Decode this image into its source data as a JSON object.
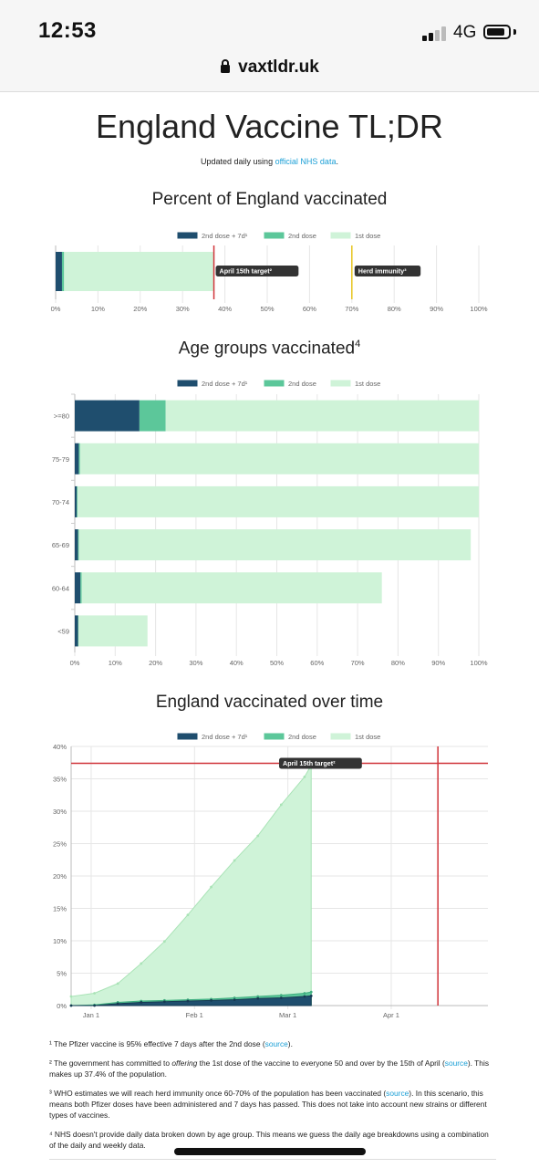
{
  "status_bar": {
    "time": "12:53",
    "network": "4G"
  },
  "browser": {
    "url": "vaxtldr.uk"
  },
  "header": {
    "title": "England Vaccine TL;DR",
    "subtitle_prefix": "Updated daily using ",
    "subtitle_link": "official NHS data",
    "subtitle_suffix": "."
  },
  "legend": [
    "2nd dose + 7d¹",
    "2nd dose",
    "1st dose"
  ],
  "colors": {
    "dose2_7d": "#1f4e6e",
    "dose2": "#5cc79a",
    "dose1": "#cff3d8",
    "target_line": "#d0343a",
    "herd_line": "#e8c520"
  },
  "sections": {
    "percent_title": "Percent of England vaccinated",
    "age_title": "Age groups vaccinated",
    "age_title_sup": "4",
    "time_title": "England vaccinated over time"
  },
  "chart_data": [
    {
      "type": "bar",
      "orientation": "horizontal",
      "stacked": true,
      "title": "Percent of England vaccinated",
      "xlim": [
        0,
        100
      ],
      "xticks": [
        "0%",
        "10%",
        "20%",
        "30%",
        "40%",
        "50%",
        "60%",
        "70%",
        "80%",
        "90%",
        "100%"
      ],
      "series": [
        {
          "name": "2nd dose + 7d¹",
          "values": [
            1.5
          ]
        },
        {
          "name": "2nd dose",
          "values": [
            0.5
          ]
        },
        {
          "name": "1st dose",
          "values": [
            35.4
          ]
        }
      ],
      "annotations": [
        {
          "label": "April 15th target²",
          "x": 37.4
        },
        {
          "label": "Herd immunity³",
          "x": 70
        }
      ],
      "legend": "top"
    },
    {
      "type": "bar",
      "orientation": "horizontal",
      "stacked": true,
      "title": "Age groups vaccinated",
      "categories": [
        ">=80",
        "75-79",
        "70-74",
        "65-69",
        "60-64",
        "<59"
      ],
      "xlim": [
        0,
        100
      ],
      "xticks": [
        "0%",
        "10%",
        "20%",
        "30%",
        "40%",
        "50%",
        "60%",
        "70%",
        "80%",
        "90%",
        "100%"
      ],
      "series": [
        {
          "name": "2nd dose + 7d¹",
          "values": [
            16,
            1,
            0.5,
            0.8,
            1.4,
            0.8
          ]
        },
        {
          "name": "2nd dose",
          "values": [
            6.5,
            0.3,
            0.2,
            0.2,
            0.3,
            0.1
          ]
        },
        {
          "name": "1st dose",
          "values": [
            77.5,
            98.7,
            99.3,
            97,
            74.3,
            17.1
          ]
        }
      ],
      "legend": "top"
    },
    {
      "type": "area",
      "title": "England vaccinated over time",
      "x_ticks": [
        "Jan 1",
        "Feb 1",
        "Mar 1",
        "Apr 1"
      ],
      "x_range": [
        "2020-12-26",
        "2021-04-30"
      ],
      "ylim": [
        0,
        40
      ],
      "yticks": [
        "0%",
        "5%",
        "10%",
        "15%",
        "20%",
        "25%",
        "30%",
        "35%",
        "40%"
      ],
      "x": [
        "2020-12-26",
        "2021-01-02",
        "2021-01-09",
        "2021-01-16",
        "2021-01-23",
        "2021-01-30",
        "2021-02-06",
        "2021-02-13",
        "2021-02-20",
        "2021-02-27",
        "2021-03-06",
        "2021-03-08"
      ],
      "series": [
        {
          "name": "1st dose",
          "values": [
            1.4,
            1.9,
            3.4,
            6.5,
            9.9,
            14.0,
            18.3,
            22.4,
            26.2,
            31.0,
            35.3,
            37.1
          ]
        },
        {
          "name": "2nd dose",
          "values": [
            0.0,
            0.1,
            0.5,
            0.7,
            0.8,
            0.9,
            1.0,
            1.2,
            1.4,
            1.6,
            1.9,
            2.1
          ]
        },
        {
          "name": "2nd dose + 7d¹",
          "values": [
            0.0,
            0.0,
            0.3,
            0.5,
            0.6,
            0.7,
            0.8,
            0.9,
            1.1,
            1.2,
            1.4,
            1.5
          ]
        }
      ],
      "annotations": [
        {
          "label": "April 15th target²",
          "y": 37.4,
          "x": "2021-04-15"
        }
      ],
      "legend": "top"
    }
  ],
  "footnotes": [
    {
      "pre": "¹ The Pfizer vaccine is 95% effective 7 days after the 2nd dose (",
      "link": "source",
      "post": ")."
    },
    {
      "pre": "² The government has committed to ",
      "em": "offering",
      "mid": " the 1st dose of the vaccine to everyone 50 and over by the 15th of April (",
      "link": "source",
      "post": "). This makes up 37.4% of the population."
    },
    {
      "pre": "³ WHO estimates we will reach herd immunity once 60-70% of the population has been vaccinated (",
      "link": "source",
      "post": "). In this scenario, this means both Pfizer doses have been administered and 7 days has passed. This does not take into account new strains or different types of vaccines."
    },
    {
      "pre": "⁴ NHS doesn't provide daily data broken down by age group. This means we guess the daily age breakdowns using a combination of the daily and weekly data."
    }
  ]
}
